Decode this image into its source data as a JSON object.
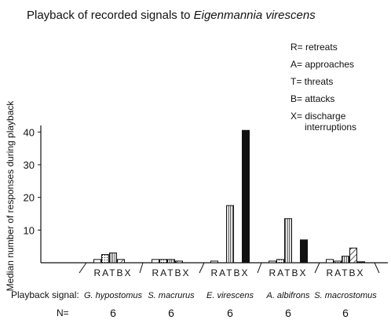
{
  "chart_data": {
    "type": "bar",
    "title_prefix": "Playback of recorded signals to",
    "title_species": "Eigenmannia virescens",
    "ylabel": "Median number of responses during playback",
    "ylim": [
      0,
      40
    ],
    "yticks": [
      "10",
      "20",
      "30",
      "40"
    ],
    "ytick_values": [
      10,
      20,
      30,
      40
    ],
    "legend": [
      {
        "code": "R",
        "text": "R= retreats"
      },
      {
        "code": "A",
        "text": "A= approaches"
      },
      {
        "code": "T",
        "text": "T= threats"
      },
      {
        "code": "B",
        "text": "B= attacks"
      },
      {
        "code": "X",
        "text": "X= discharge",
        "text2": "interruptions"
      }
    ],
    "response_codes": [
      "R",
      "A",
      "T",
      "B",
      "X"
    ],
    "group_letter_label": "RATBX",
    "row_label": "Playback signal:",
    "n_label": "N=",
    "groups": [
      {
        "signal": "G. hypostomus",
        "n": "6",
        "values": {
          "R": 1,
          "A": 2.5,
          "T": 3,
          "B": 1,
          "X": 0
        }
      },
      {
        "signal": "S. macrurus",
        "n": "6",
        "values": {
          "R": 1,
          "A": 1,
          "T": 1,
          "B": 0.5,
          "X": 0
        }
      },
      {
        "signal": "E. virescens",
        "n": "6",
        "values": {
          "R": 0.5,
          "A": 0,
          "T": 17.5,
          "B": 0,
          "X": 40.5
        }
      },
      {
        "signal": "A. albifrons",
        "n": "6",
        "values": {
          "R": 0.5,
          "A": 1,
          "T": 13.5,
          "B": 0,
          "X": 7
        }
      },
      {
        "signal": "S. macrostomus",
        "n": "6",
        "values": {
          "R": 1,
          "A": 0.5,
          "T": 2,
          "B": 4.5,
          "X": 0.3
        }
      }
    ],
    "patterns": {
      "R": "white",
      "A": "dots",
      "T": "vertical",
      "B": "diagonal",
      "X": "black"
    }
  }
}
